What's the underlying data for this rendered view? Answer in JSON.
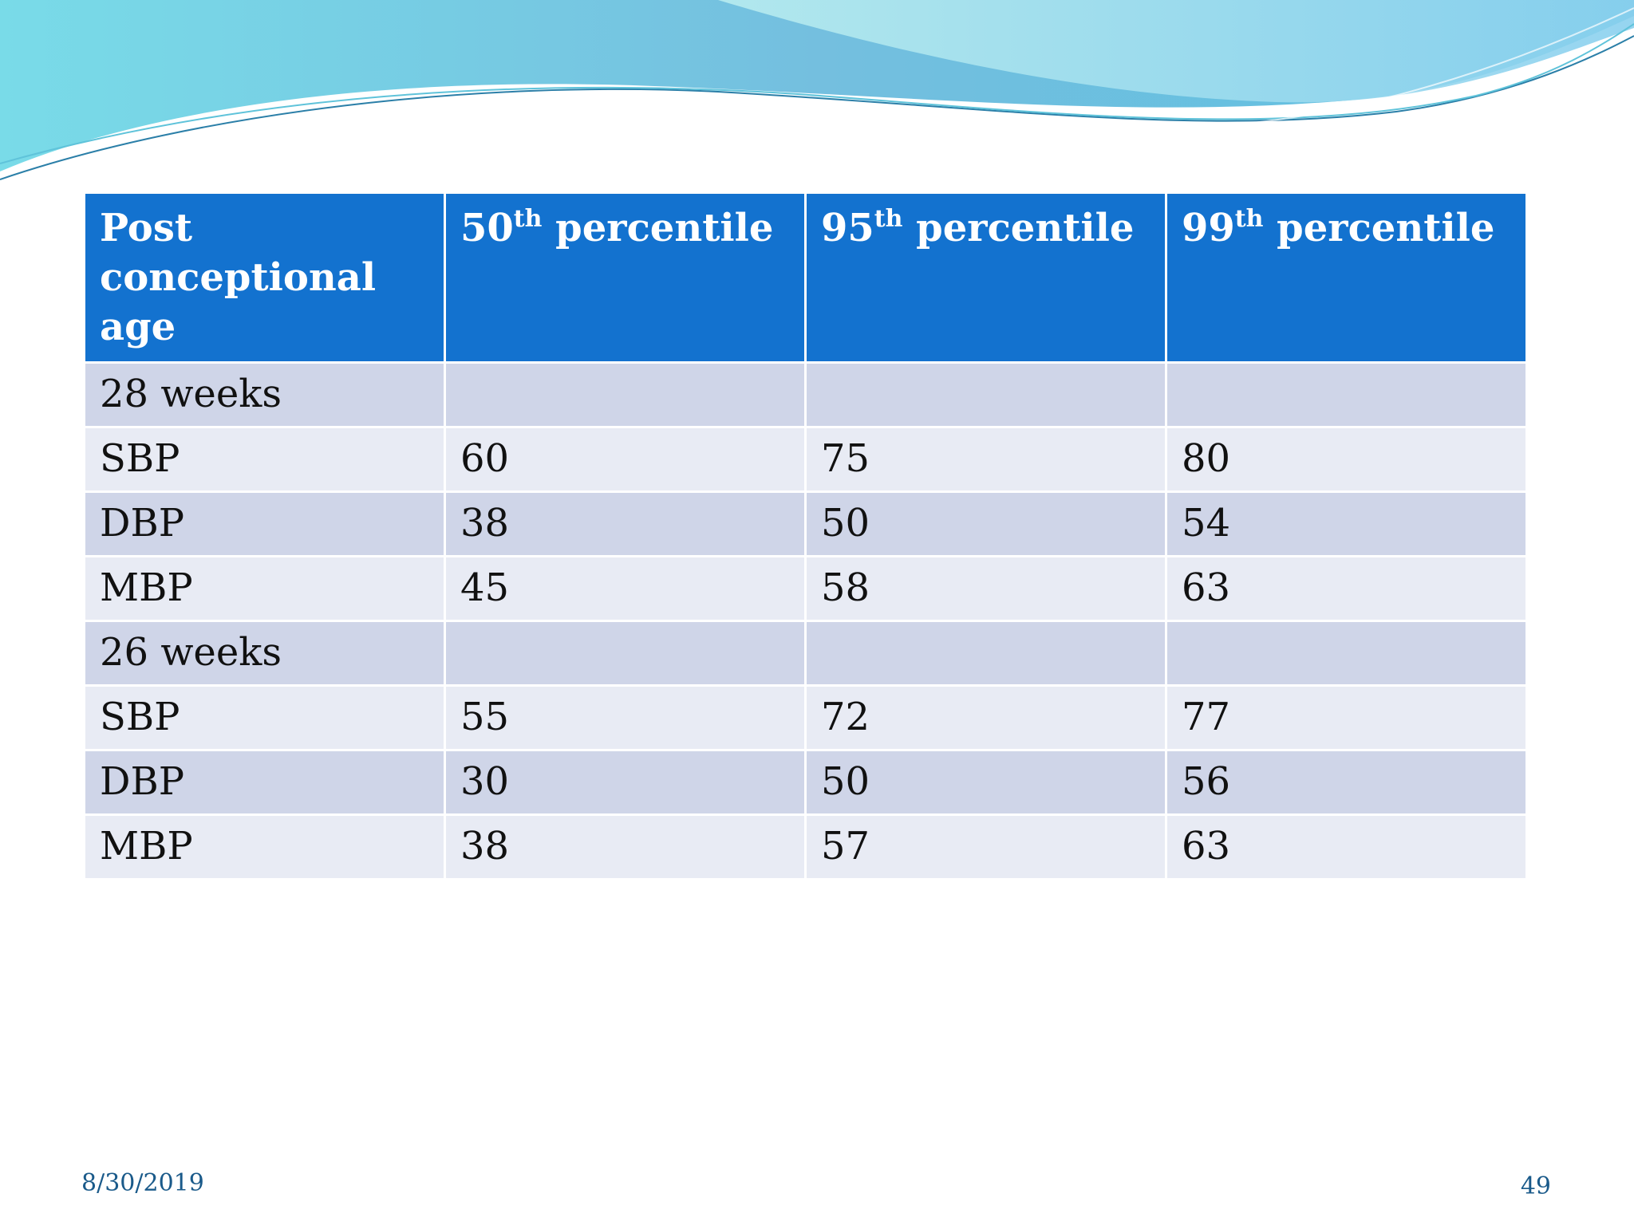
{
  "colors": {
    "header_bg": "#1372cf",
    "row_dark": "#cfd5e8",
    "row_light": "#e8ebf4",
    "wave_light": "#7fd3e6",
    "wave_dark": "#4fb6d8",
    "footer_text": "#1a5a8a"
  },
  "table": {
    "headers": [
      {
        "main": "Post conceptional age",
        "sup": "",
        "rest": ""
      },
      {
        "main": "50",
        "sup": "th",
        "rest": " percentile"
      },
      {
        "main": "95",
        "sup": "th",
        "rest": " percentile"
      },
      {
        "main": "99",
        "sup": "th",
        "rest": " percentile"
      }
    ],
    "rows": [
      {
        "label": "28 weeks",
        "c50": "",
        "c95": "",
        "c99": ""
      },
      {
        "label": "SBP",
        "c50": "60",
        "c95": "75",
        "c99": "80"
      },
      {
        "label": "DBP",
        "c50": "38",
        "c95": "50",
        "c99": "54"
      },
      {
        "label": "MBP",
        "c50": "45",
        "c95": "58",
        "c99": "63"
      },
      {
        "label": "26 weeks",
        "c50": "",
        "c95": "",
        "c99": ""
      },
      {
        "label": "SBP",
        "c50": "55",
        "c95": "72",
        "c99": "77"
      },
      {
        "label": "DBP",
        "c50": "30",
        "c95": "50",
        "c99": "56"
      },
      {
        "label": "MBP",
        "c50": "38",
        "c95": "57",
        "c99": "63"
      }
    ]
  },
  "footer": {
    "date": "8/30/2019",
    "page": "49"
  }
}
